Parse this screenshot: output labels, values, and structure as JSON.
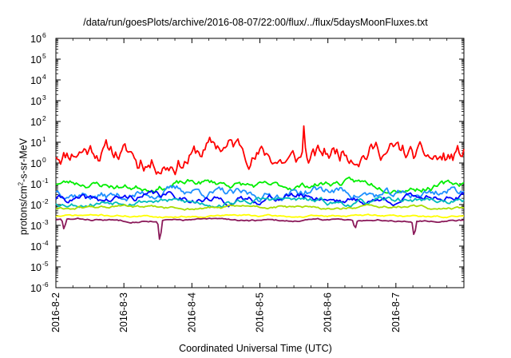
{
  "chart_data": {
    "type": "line",
    "title": "/data/run/goesPlots/archive/2016-08-07/22:00/flux/../flux/5daysMoonFluxes.txt",
    "xlabel": "Coordinated Universal Time (UTC)",
    "ylabel_prefix": "protons/cm",
    "ylabel_sup": "2",
    "ylabel_suffix": "-s-sr-MeV",
    "yscale": "log",
    "ylim": [
      1e-06,
      1000000.0
    ],
    "xlim": [
      0,
      6
    ],
    "y_ticks": [
      {
        "base": "10",
        "exp": "-6",
        "value": -6
      },
      {
        "base": "10",
        "exp": "-5",
        "value": -5
      },
      {
        "base": "10",
        "exp": "-4",
        "value": -4
      },
      {
        "base": "10",
        "exp": "-3",
        "value": -3
      },
      {
        "base": "10",
        "exp": "-2",
        "value": -2
      },
      {
        "base": "10",
        "exp": "-1",
        "value": -1
      },
      {
        "base": "10",
        "exp": "0",
        "value": 0
      },
      {
        "base": "10",
        "exp": "1",
        "value": 1
      },
      {
        "base": "10",
        "exp": "2",
        "value": 2
      },
      {
        "base": "10",
        "exp": "3",
        "value": 3
      },
      {
        "base": "10",
        "exp": "4",
        "value": 4
      },
      {
        "base": "10",
        "exp": "5",
        "value": 5
      },
      {
        "base": "10",
        "exp": "6",
        "value": 6
      }
    ],
    "x_ticks": [
      "2016-8-2",
      "2016-8-3",
      "2016-8-4",
      "2016-8-5",
      "2016-8-6",
      "2016-8-7"
    ],
    "grid": false,
    "series": [
      {
        "color": "#ff0000",
        "base_log10": 0.45,
        "amp": 0.55,
        "seed": 11,
        "spikes": [
          [
            3.65,
            1.7
          ],
          [
            1.2,
            -0.5
          ]
        ]
      },
      {
        "color": "#00ee00",
        "base_log10": -1.05,
        "amp": 0.18,
        "seed": 23,
        "spikes": []
      },
      {
        "color": "#1e90ff",
        "base_log10": -1.45,
        "amp": 0.25,
        "seed": 37,
        "spikes": []
      },
      {
        "color": "#0000ff",
        "base_log10": -1.7,
        "amp": 0.2,
        "seed": 41,
        "spikes": []
      },
      {
        "color": "#00bbbb",
        "base_log10": -1.85,
        "amp": 0.15,
        "seed": 53,
        "spikes": []
      },
      {
        "color": "#aadd00",
        "base_log10": -2.15,
        "amp": 0.08,
        "seed": 61,
        "spikes": []
      },
      {
        "color": "#ffff00",
        "base_log10": -2.55,
        "amp": 0.05,
        "seed": 71,
        "spikes": []
      },
      {
        "color": "#8b1a5a",
        "base_log10": -2.75,
        "amp": 0.05,
        "seed": 83,
        "spikes": [
          [
            0.12,
            -0.55
          ],
          [
            1.53,
            -1.1
          ],
          [
            4.4,
            -0.45
          ],
          [
            5.27,
            -0.8
          ]
        ]
      }
    ]
  }
}
